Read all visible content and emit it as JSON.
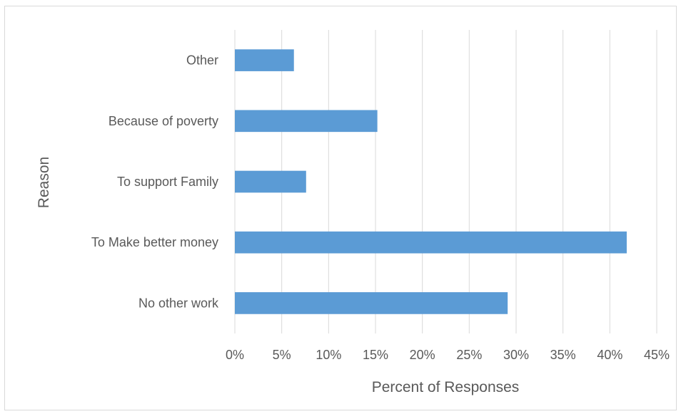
{
  "chart_data": {
    "type": "bar",
    "orientation": "horizontal",
    "categories": [
      "Other",
      "Because of poverty",
      "To support Family",
      "To Make better money",
      "No other work"
    ],
    "values": [
      6.3,
      15.2,
      7.6,
      41.8,
      29.1
    ],
    "xlabel": "Percent of Responses",
    "ylabel": "Reason",
    "xlim": [
      0,
      45
    ],
    "x_ticks": [
      "0%",
      "5%",
      "10%",
      "15%",
      "20%",
      "25%",
      "30%",
      "35%",
      "40%",
      "45%"
    ],
    "grid": "vertical",
    "bar_color": "#5b9bd5",
    "grid_color": "#d9d9d9"
  }
}
